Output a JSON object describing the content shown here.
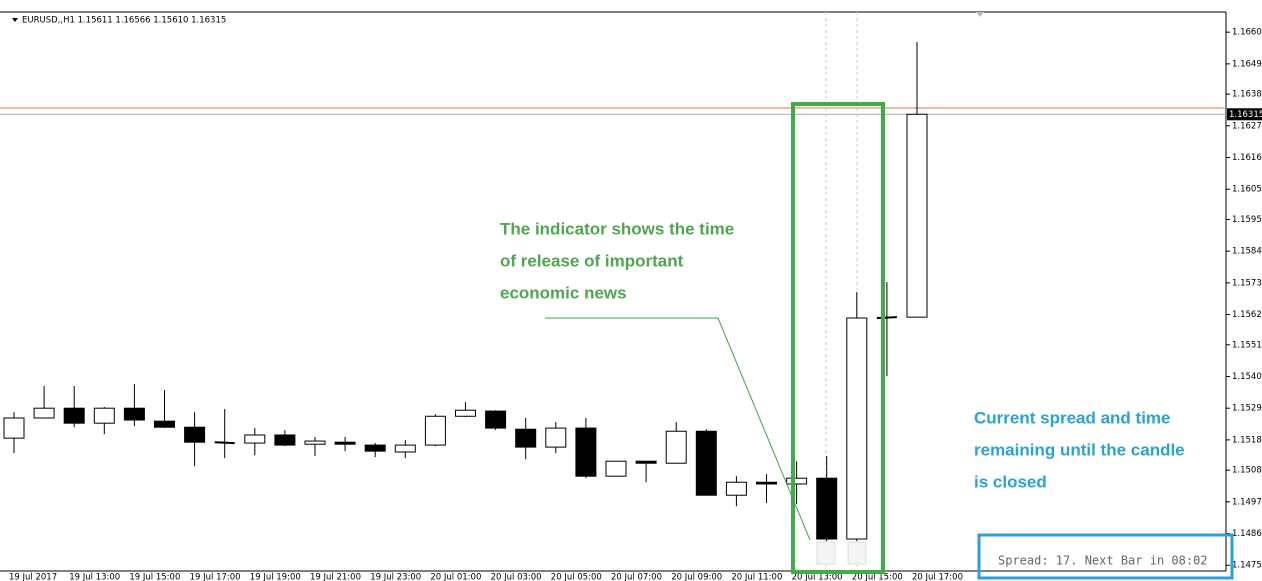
{
  "chart_data": {
    "type": "candlestick",
    "header": "EURUSD,,H1  1.15611 1.16566 1.15610 1.16315",
    "categories": [
      "19 Jul 2017",
      null,
      "19 Jul 13:00",
      null,
      "19 Jul 15:00",
      null,
      "19 Jul 17:00",
      null,
      "19 Jul 19:00",
      null,
      "19 Jul 21:00",
      null,
      "19 Jul 23:00",
      null,
      "20 Jul 01:00",
      null,
      "20 Jul 03:00",
      null,
      "20 Jul 05:00",
      null,
      "20 Jul 07:00",
      null,
      "20 Jul 09:00",
      null,
      "20 Jul 11:00",
      null,
      "20 Jul 13:00",
      null,
      "20 Jul 15:00",
      null,
      "20 Jul 17:00"
    ],
    "open": [
      1.15191,
      1.15261,
      1.15295,
      1.15243,
      1.15295,
      1.1525,
      1.15229,
      1.15177,
      1.15174,
      1.15202,
      1.1517,
      1.15177,
      1.15167,
      1.15143,
      1.15167,
      1.15267,
      1.15285,
      1.15222,
      1.1516,
      1.15226,
      1.15059,
      1.15111,
      1.15104,
      1.15215,
      1.14993,
      1.15038,
      1.15032,
      1.15052,
      1.14841,
      1.15608,
      1.15611
    ],
    "high": [
      1.15281,
      1.15372,
      1.15372,
      1.15299,
      1.15379,
      1.15358,
      1.15281,
      1.15292,
      1.15226,
      1.15219,
      1.15195,
      1.15195,
      1.15174,
      1.15184,
      1.15274,
      1.15316,
      1.15288,
      1.15261,
      1.15247,
      1.15261,
      1.15111,
      1.15111,
      1.15247,
      1.15222,
      1.15059,
      1.15066,
      1.15111,
      1.15129,
      1.15698,
      1.15733,
      1.16566
    ],
    "low": [
      1.15139,
      1.15261,
      1.15229,
      1.15205,
      1.15233,
      1.15226,
      1.15094,
      1.15122,
      1.15132,
      1.15163,
      1.15129,
      1.15146,
      1.15125,
      1.15122,
      1.15163,
      1.15264,
      1.15219,
      1.15118,
      1.15139,
      1.15052,
      1.15059,
      1.15038,
      1.15104,
      1.14993,
      1.14955,
      1.14966,
      1.14962,
      1.14834,
      1.14834,
      1.15406,
      1.1561
    ],
    "close": [
      1.15261,
      1.15295,
      1.15243,
      1.15295,
      1.15254,
      1.15229,
      1.15177,
      1.15174,
      1.15202,
      1.15167,
      1.15181,
      1.1517,
      1.15146,
      1.15167,
      1.15267,
      1.15288,
      1.15226,
      1.1516,
      1.15226,
      1.15059,
      1.15111,
      1.15104,
      1.15215,
      1.14993,
      1.15038,
      1.15032,
      1.15052,
      1.14841,
      1.15608,
      1.15611,
      1.16315
    ],
    "up_color": "#ffffff",
    "down_color": "#000000",
    "ylim": [
      1.1473,
      1.1667
    ],
    "yticks": [
      {
        "value": 1.166,
        "label": "1.16600"
      },
      {
        "value": 1.1649,
        "label": "1.16490"
      },
      1.16385,
      1.16275,
      1.16165,
      1.16055,
      {
        "value": 1.1595,
        "label": "1.15950"
      },
      {
        "value": 1.1584,
        "label": "1.15840"
      },
      {
        "value": 1.1573,
        "label": "1.15730"
      },
      {
        "value": 1.1562,
        "label": "1.15620"
      },
      1.15515,
      1.15405,
      1.15295,
      1.15185,
      {
        "value": 1.1508,
        "label": "1.15080"
      },
      {
        "value": 1.1497,
        "label": "1.14970"
      },
      {
        "value": 1.1486,
        "label": "1.14860"
      },
      {
        "value": 1.1475,
        "label": "1.14750"
      }
    ],
    "price_line": 1.16315,
    "ask_line": 1.16337,
    "news_annotation": [
      "The indicator shows the time",
      "of release of important",
      "economic news"
    ],
    "spread_annotation": [
      "Current spread and time",
      "remaining until the candle",
      "is closed"
    ],
    "spread_info": "Spread: 17. Next Bar in 08:02"
  }
}
